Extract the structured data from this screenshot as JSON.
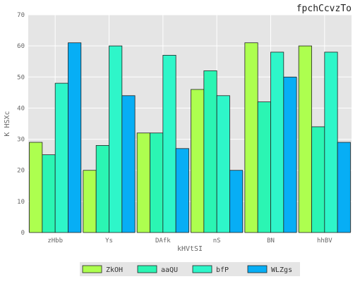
{
  "chart_data": {
    "type": "bar",
    "title": "fpchCcvzTo",
    "xlabel": "kHVtSI",
    "ylabel": "K HSXc",
    "categories": [
      "zHbb",
      "Ys",
      "DAfk",
      "nS",
      "BN",
      "hhBV"
    ],
    "ylim": [
      0,
      70
    ],
    "yticks": [
      0,
      10,
      20,
      30,
      40,
      50,
      60,
      70
    ],
    "grid": true,
    "legend_position": "bottom-center",
    "series": [
      {
        "name": "ZkOH",
        "color": "#adff4f",
        "values": [
          29,
          20,
          32,
          46,
          61,
          60
        ]
      },
      {
        "name": "aaQU",
        "color": "#2bf5b3",
        "values": [
          25,
          28,
          32,
          52,
          42,
          34
        ]
      },
      {
        "name": "bfP",
        "color": "#2ef6c9",
        "values": [
          48,
          60,
          57,
          44,
          58,
          58
        ]
      },
      {
        "name": "WLZgs",
        "color": "#07aef5",
        "values": [
          61,
          44,
          27,
          20,
          50,
          29
        ]
      }
    ]
  }
}
